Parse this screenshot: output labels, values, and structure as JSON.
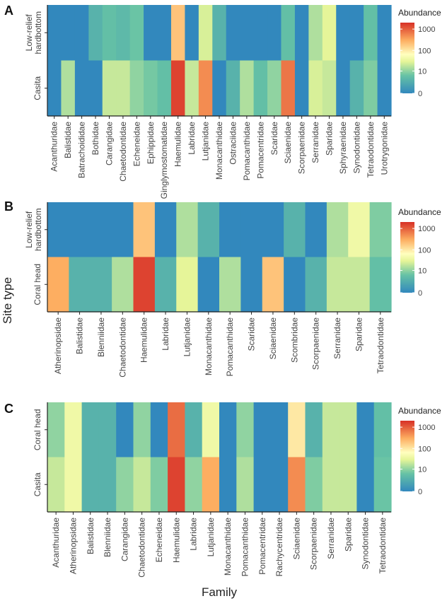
{
  "figure": {
    "ylabel": "Site type",
    "xlabel": "Family"
  },
  "chart_data": [
    {
      "type": "heatmap",
      "panel": "A",
      "rows": [
        "Low-relief hardbottom",
        "Casita"
      ],
      "columns": [
        "Acanthuridae",
        "Balistidae",
        "Batrachoididae",
        "Bothidae",
        "Carangidae",
        "Chaetodontidae",
        "Echeneidae",
        "Ephippidae",
        "Ginglymostomatidae",
        "Haemulidae",
        "Labridae",
        "Lutjanidae",
        "Monacanthidae",
        "Ostraciidae",
        "Pomacanthidae",
        "Pomacentridae",
        "Scaridae",
        "Sciaenidae",
        "Scorpaenidae",
        "Serranidae",
        "Sparidae",
        "Sphyraenidae",
        "Synodontidae",
        "Tetraodontidae",
        "Urotrygonidae"
      ],
      "values": [
        [
          0,
          0,
          0,
          3,
          5,
          4,
          6,
          0,
          0,
          200,
          0,
          25,
          3,
          0,
          0,
          0,
          0,
          5,
          0,
          15,
          30,
          0,
          0,
          5,
          0
        ],
        [
          0,
          15,
          0,
          0,
          20,
          20,
          10,
          7,
          5,
          1500,
          20,
          500,
          0,
          3,
          15,
          5,
          10,
          700,
          0,
          25,
          20,
          0,
          3,
          8,
          0
        ]
      ],
      "legend": {
        "title": "Abundance",
        "ticks": [
          "1000",
          "100",
          "10",
          "0"
        ],
        "position": "right",
        "scale": "log"
      }
    },
    {
      "type": "heatmap",
      "panel": "B",
      "rows": [
        "Low-relief hardbottom",
        "Coral head"
      ],
      "columns": [
        "Atherinopsidae",
        "Balistidae",
        "Blenniidae",
        "Chaetodontidae",
        "Haemulidae",
        "Labridae",
        "Lutjanidae",
        "Monacanthidae",
        "Pomacanthidae",
        "Scaridae",
        "Sciaenidae",
        "Scombridae",
        "Scorpaenidae",
        "Serranidae",
        "Sparidae",
        "Tetraodontidae"
      ],
      "values": [
        [
          0,
          0,
          0,
          0,
          200,
          0,
          15,
          3,
          0,
          0,
          0,
          3,
          0,
          15,
          40,
          8
        ],
        [
          300,
          3,
          3,
          15,
          1500,
          3,
          30,
          0,
          15,
          0,
          200,
          0,
          3,
          20,
          20,
          5
        ]
      ],
      "legend": {
        "title": "Abundance",
        "ticks": [
          "1000",
          "100",
          "10",
          "0"
        ],
        "position": "right",
        "scale": "log"
      }
    },
    {
      "type": "heatmap",
      "panel": "C",
      "rows": [
        "Coral head",
        "Casita"
      ],
      "columns": [
        "Acanthuridae",
        "Atherinopsidae",
        "Balistidae",
        "Blenniidae",
        "Carangidae",
        "Chaetodontidae",
        "Echeneidae",
        "Haemulidae",
        "Labridae",
        "Lutjanidae",
        "Monacanthidae",
        "Pomacanthidae",
        "Pomacentridae",
        "Rachycentridae",
        "Sciaenidae",
        "Scorpaenidae",
        "Serranidae",
        "Sparidae",
        "Synodontidae",
        "Tetraodontidae"
      ],
      "values": [
        [
          10,
          40,
          3,
          3,
          0,
          10,
          0,
          800,
          3,
          40,
          0,
          10,
          0,
          0,
          100,
          3,
          20,
          20,
          0,
          5
        ],
        [
          20,
          40,
          3,
          3,
          10,
          20,
          8,
          1500,
          10,
          300,
          0,
          15,
          0,
          0,
          500,
          8,
          20,
          20,
          0,
          6
        ]
      ],
      "legend": {
        "title": "Abundance",
        "ticks": [
          "1000",
          "100",
          "10",
          "0"
        ],
        "position": "right",
        "scale": "log"
      }
    }
  ]
}
